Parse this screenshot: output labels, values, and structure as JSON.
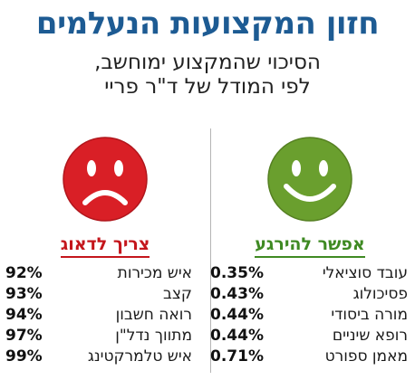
{
  "header": {
    "title": "חזון המקצועות הנעלמים",
    "subtitle_line1": "הסיכוי שהמקצוע ימוחשב,",
    "subtitle_line2": "לפי המודל של ד\"ר פריי"
  },
  "low_risk": {
    "heading": "אפשר להירגע",
    "face": "smiley-face-icon",
    "color": "#6a9f2e",
    "items": [
      {
        "name": "עובד סוציאלי",
        "value": "0.35%"
      },
      {
        "name": "פסיכולוג",
        "value": "0.43%"
      },
      {
        "name": "מורה ביסודי",
        "value": "0.44%"
      },
      {
        "name": "רופא שיניים",
        "value": "0.44%"
      },
      {
        "name": "מאמן ספורט",
        "value": "0.71%"
      }
    ]
  },
  "high_risk": {
    "heading": "צריך לדאוג",
    "face": "sad-face-icon",
    "color": "#d91f26",
    "items": [
      {
        "name": "איש מכירות",
        "value": "92%"
      },
      {
        "name": "קצב",
        "value": "93%"
      },
      {
        "name": "רואה חשבון",
        "value": "94%"
      },
      {
        "name": "מתווך נדל\"ן",
        "value": "97%"
      },
      {
        "name": "איש טלמרקטינג",
        "value": "99%"
      }
    ]
  }
}
